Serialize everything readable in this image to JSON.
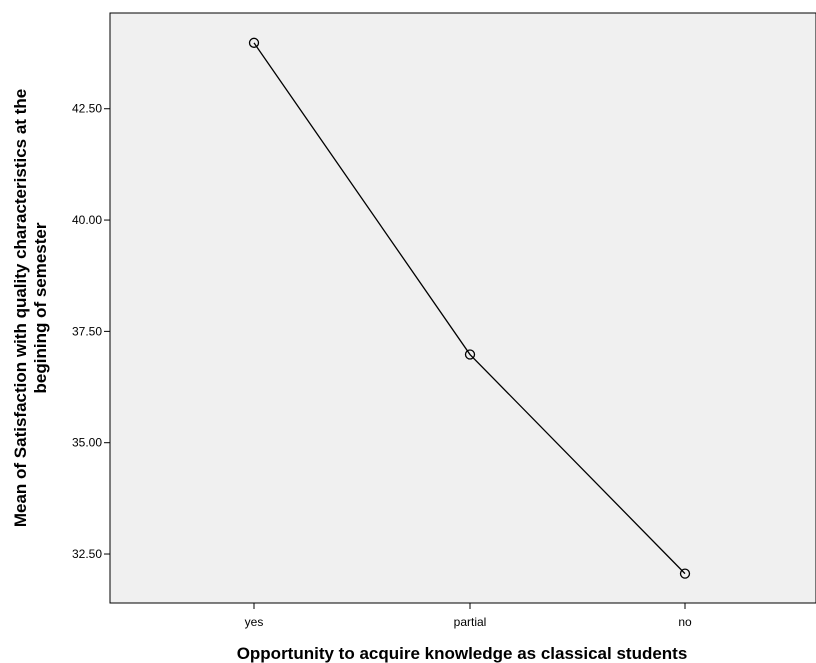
{
  "chart_data": {
    "type": "line",
    "categories": [
      "yes",
      "partial",
      "no"
    ],
    "series": [
      {
        "values": [
          43.98,
          36.98,
          32.06
        ]
      }
    ],
    "xlabel": "Opportunity to acquire knowledge as classical students",
    "ylabel_lines": [
      "Mean of Satisfaction with quality characteristics at the",
      "begining of semester"
    ],
    "yticks": [
      "32.50",
      "35.00",
      "37.50",
      "40.00",
      "42.50"
    ],
    "ylim": [
      31.4,
      44.65
    ],
    "grid": false,
    "legend": "none",
    "colors": {
      "plot_background": "#f0f0f0",
      "line": "#000000"
    },
    "marker": "open-circle"
  }
}
